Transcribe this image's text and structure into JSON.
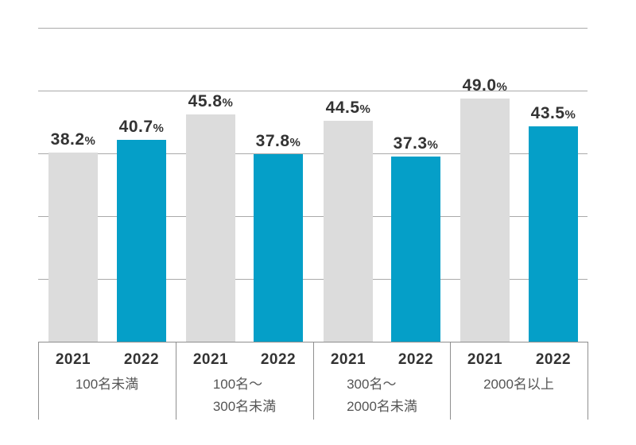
{
  "page": {
    "background_color": "#ffffff"
  },
  "chart_data": {
    "type": "bar",
    "title": "",
    "unit": "%",
    "legend": "none",
    "grid": true,
    "categories": [
      {
        "lines": [
          "100名未満"
        ]
      },
      {
        "lines": [
          "100名～",
          "300名未満"
        ]
      },
      {
        "lines": [
          "300名～",
          "2000名未満"
        ]
      },
      {
        "lines": [
          "2000名以上"
        ]
      }
    ],
    "x_group_labels": [
      "2021",
      "2022"
    ],
    "series": [
      {
        "name": "2021",
        "color": "#dcdcdc",
        "values": [
          38.2,
          45.8,
          44.5,
          49.0
        ],
        "display": [
          "38.2",
          "45.8",
          "44.5",
          "49.0"
        ]
      },
      {
        "name": "2022",
        "color": "#059fc8",
        "values": [
          40.7,
          37.8,
          37.3,
          43.5
        ],
        "display": [
          "40.7",
          "37.8",
          "37.3",
          "43.5"
        ]
      }
    ],
    "colors": {
      "value_label": "#333333",
      "year_label": "#333333",
      "category_label": "#555555",
      "gridline": "#aaaaaa",
      "axis_frame": "#8f8f8f"
    }
  }
}
